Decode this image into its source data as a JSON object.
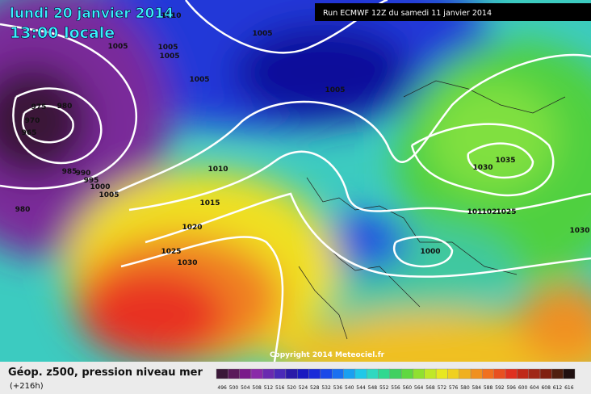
{
  "header": {
    "date": "lundi 20 janvier 2014",
    "time": "13:00 locale",
    "run": "Run ECMWF 12Z du samedi 11 janvier 2014"
  },
  "map": {
    "isobar_labels": [
      "1010",
      "1005",
      "1005",
      "1005",
      "1005",
      "1005",
      "1005",
      "975",
      "980",
      "970",
      "965",
      "985",
      "990",
      "995",
      "1000",
      "1005",
      "980",
      "1010",
      "1015",
      "1020",
      "1025",
      "1030",
      "1030",
      "1035",
      "101",
      "102",
      "1025",
      "1000",
      "1030"
    ],
    "copyright": "Copyright 2014 Meteociel.fr"
  },
  "footer": {
    "title": "Géop. z500, pression niveau mer",
    "lead": "(+216h)",
    "scale": {
      "values": [
        496,
        500,
        504,
        508,
        512,
        516,
        520,
        524,
        528,
        532,
        536,
        540,
        544,
        548,
        552,
        556,
        560,
        564,
        568,
        572,
        576,
        580,
        584,
        588,
        592,
        596,
        600,
        604,
        608,
        612,
        616
      ],
      "colors": [
        "#3a1838",
        "#5a1a5a",
        "#7a1a8a",
        "#8a2aa8",
        "#6a2ab0",
        "#4a2ab8",
        "#2a1aa8",
        "#1a1ac0",
        "#1a2ad8",
        "#1a48e8",
        "#1a70f0",
        "#1aa0f0",
        "#20c8e8",
        "#30d8c0",
        "#30d890",
        "#40d060",
        "#60d840",
        "#90e030",
        "#c0e828",
        "#e8e820",
        "#f0d020",
        "#f0b020",
        "#f09020",
        "#f07020",
        "#e85020",
        "#e03020",
        "#c02818",
        "#a02818",
        "#802010",
        "#502010",
        "#201010"
      ]
    }
  }
}
